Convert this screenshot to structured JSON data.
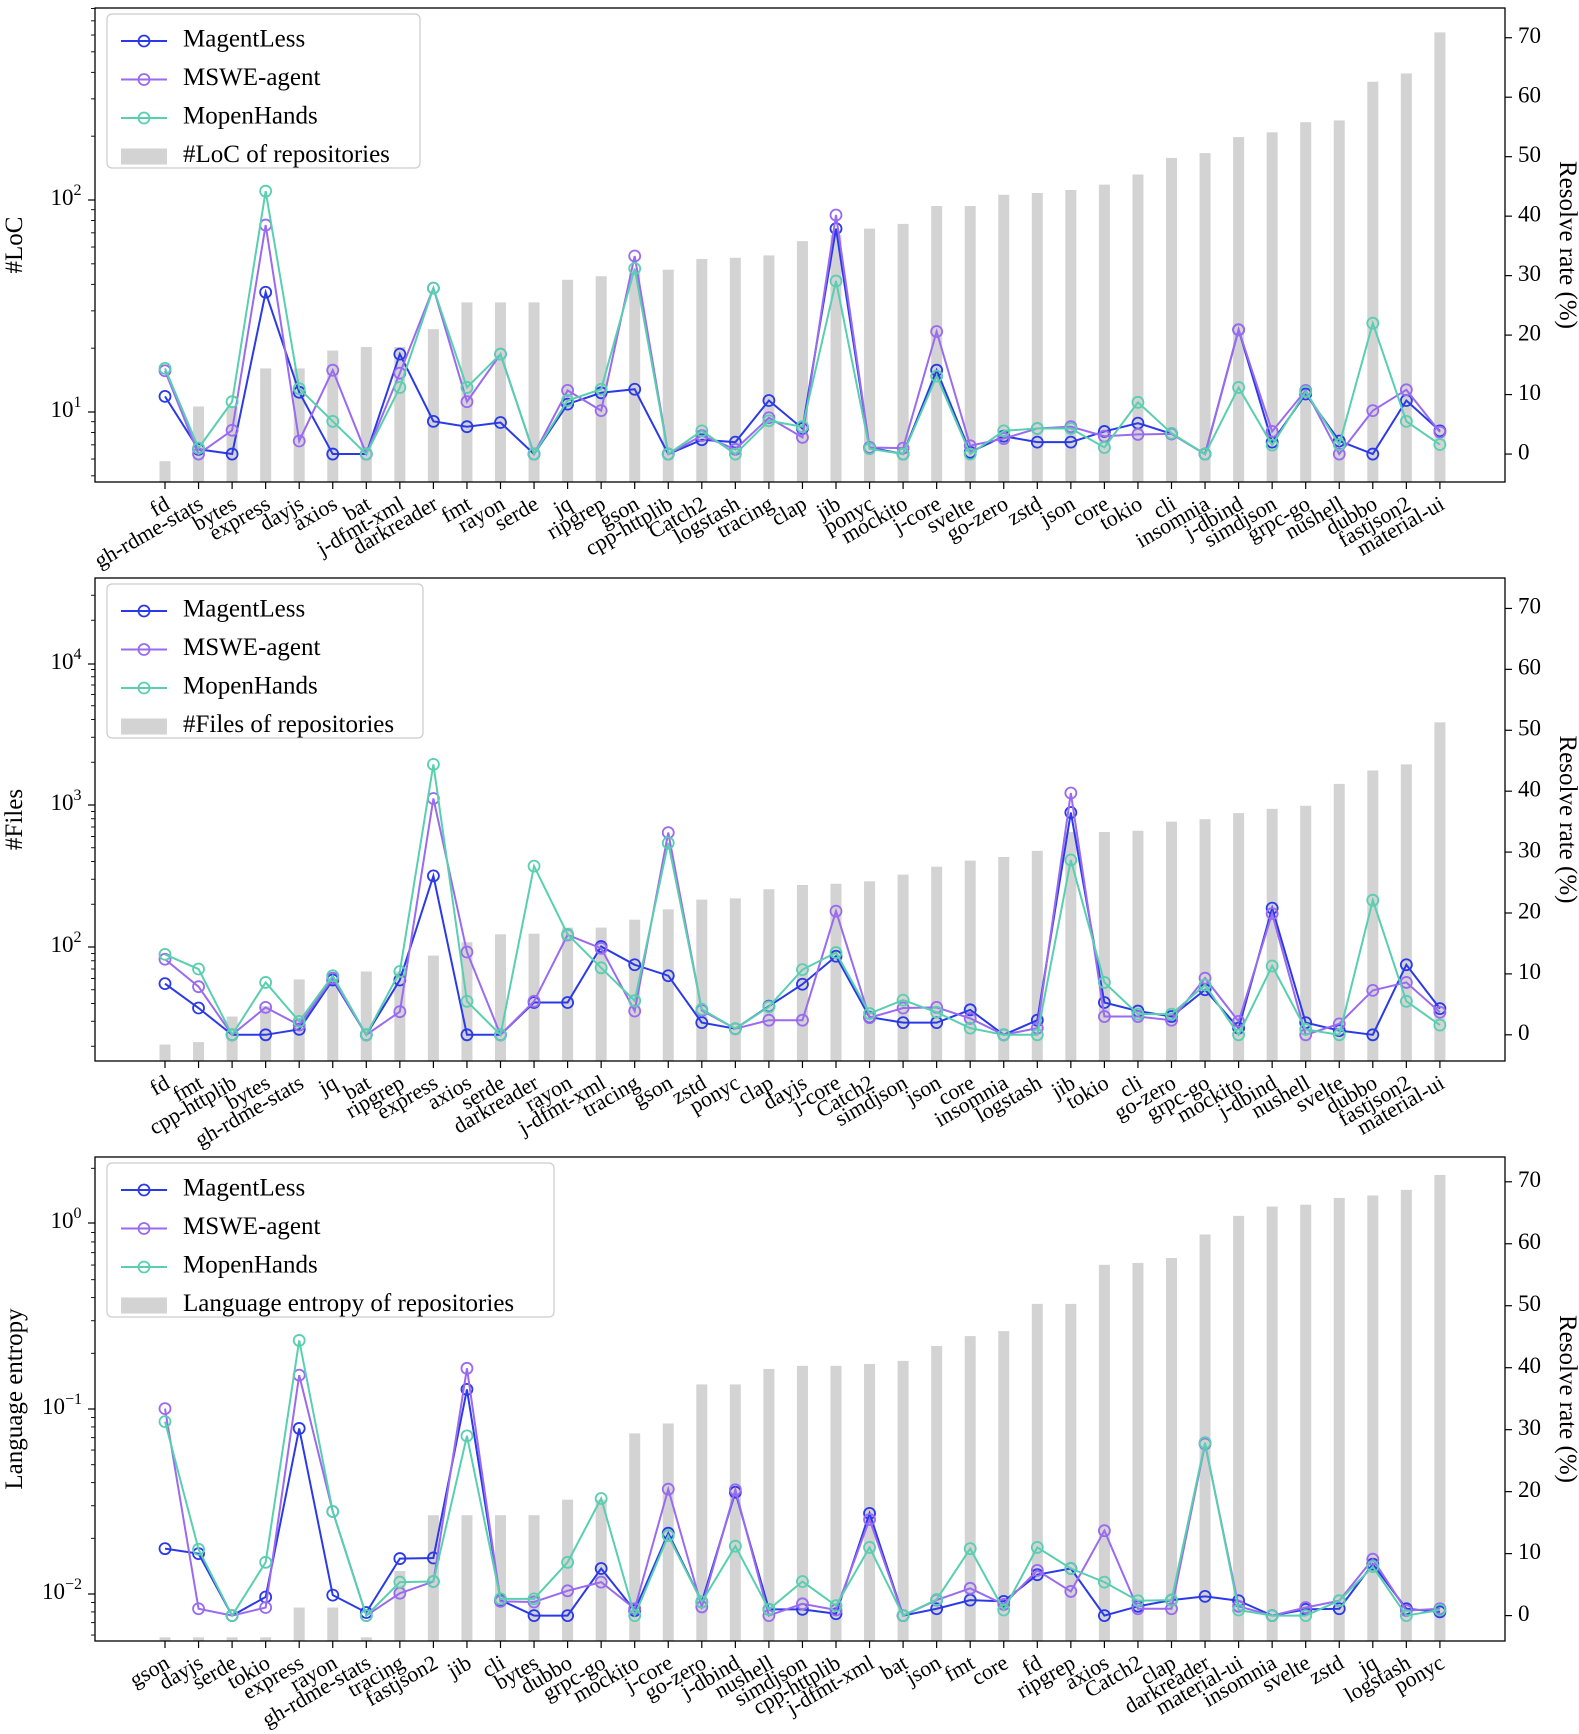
{
  "colors": {
    "magentless": "#2b3ae8",
    "msweagent": "#9a6af0",
    "mopenhands": "#59cfb0",
    "bar": "#d3d3d3"
  },
  "chart_data": [
    {
      "type": "bar+line",
      "y_left_label": "#LoC",
      "y_right_label": "Resolve rate (%)",
      "y_left_scale": "log",
      "y_left_ticks": [
        "10^1",
        "10^2"
      ],
      "y_right_ticks": [
        0,
        10,
        20,
        30,
        40,
        50,
        60,
        70
      ],
      "y_right_lim": [
        -4.7,
        75
      ],
      "legend": {
        "position": "top-left",
        "entries": [
          "MagentLess",
          "MSWE-agent",
          "MopenHands",
          "#LoC of repositories"
        ]
      },
      "categories": [
        "fd",
        "gh-rdme-stats",
        "bytes",
        "express",
        "dayjs",
        "axios",
        "bat",
        "j-dfmt-xml",
        "darkreader",
        "fmt",
        "rayon",
        "serde",
        "jq",
        "ripgrep",
        "gson",
        "cpp-httplib",
        "Catch2",
        "logstash",
        "tracing",
        "clap",
        "jib",
        "ponyc",
        "mockito",
        "j-core",
        "svelte",
        "go-zero",
        "zstd",
        "json",
        "core",
        "tokio",
        "cli",
        "insomnia",
        "j-dbind",
        "simdjson",
        "grpc-go",
        "nushell",
        "dubbo",
        "fastjson2",
        "material-ui"
      ],
      "bar_values": [
        -1.2,
        8.0,
        8.0,
        14.4,
        14.4,
        17.4,
        18.0,
        18.0,
        21.0,
        25.5,
        25.5,
        25.5,
        29.3,
        29.9,
        30.5,
        31.0,
        32.8,
        33.0,
        33.4,
        35.8,
        36.8,
        37.9,
        38.7,
        41.7,
        41.7,
        43.6,
        43.9,
        44.4,
        45.3,
        47.0,
        49.8,
        50.6,
        53.3,
        54.1,
        55.8,
        56.1,
        62.6,
        64.0,
        70.9
      ],
      "series": [
        {
          "name": "MagentLess",
          "values": [
            9.7,
            0.8,
            0.0,
            27.2,
            10.4,
            0.0,
            0.0,
            16.8,
            5.5,
            4.6,
            5.3,
            0.0,
            8.4,
            10.3,
            10.9,
            0.0,
            2.4,
            2.0,
            9.0,
            4.3,
            37.9,
            1.1,
            0.0,
            14.1,
            0.3,
            3.0,
            2.0,
            2.0,
            3.8,
            5.2,
            3.4,
            0.0,
            20.9,
            2.0,
            10.1,
            2.2,
            0.0,
            9.0,
            3.9
          ]
        },
        {
          "name": "MSWE-agent",
          "values": [
            14.0,
            0.0,
            4.0,
            38.5,
            2.2,
            14.1,
            0.0,
            13.6,
            27.9,
            8.8,
            16.8,
            0.0,
            10.7,
            7.3,
            33.3,
            0.0,
            3.1,
            0.8,
            6.1,
            2.8,
            40.2,
            1.1,
            1.0,
            20.6,
            1.4,
            2.6,
            4.3,
            4.6,
            3.0,
            3.3,
            3.4,
            0.0,
            20.9,
            3.8,
            10.7,
            0.0,
            7.3,
            10.8,
            3.7
          ]
        },
        {
          "name": "MopenHands",
          "values": [
            14.4,
            1.0,
            8.8,
            44.2,
            11.0,
            5.5,
            0.0,
            11.2,
            27.9,
            11.2,
            16.8,
            0.0,
            9.0,
            10.9,
            31.2,
            0.0,
            3.9,
            0.0,
            5.6,
            4.6,
            29.1,
            0.9,
            0.0,
            13.1,
            0.0,
            3.9,
            4.3,
            4.3,
            1.1,
            8.7,
            3.5,
            0.0,
            11.2,
            1.5,
            10.5,
            1.6,
            22.0,
            5.5,
            1.6
          ]
        }
      ]
    },
    {
      "type": "bar+line",
      "y_left_label": "#Files",
      "y_right_label": "Resolve rate (%)",
      "y_left_scale": "log",
      "y_left_ticks": [
        "10^2",
        "10^3",
        "10^4"
      ],
      "y_right_ticks": [
        0,
        10,
        20,
        30,
        40,
        50,
        60,
        70
      ],
      "y_right_lim": [
        -4.3,
        75
      ],
      "legend": {
        "position": "top-left",
        "entries": [
          "MagentLess",
          "MSWE-agent",
          "MopenHands",
          "#Files of repositories"
        ]
      },
      "categories": [
        "fd",
        "fmt",
        "cpp-httplib",
        "bytes",
        "gh-rdme-stats",
        "jq",
        "bat",
        "ripgrep",
        "express",
        "axios",
        "serde",
        "darkreader",
        "rayon",
        "j-dfmt-xml",
        "tracing",
        "gson",
        "zstd",
        "ponyc",
        "clap",
        "dayjs",
        "j-core",
        "Catch2",
        "simdjson",
        "json",
        "core",
        "insomnia",
        "logstash",
        "jib",
        "tokio",
        "cli",
        "go-zero",
        "grpc-go",
        "mockito",
        "j-dbind",
        "nushell",
        "svelte",
        "dubbo",
        "fastjson2",
        "material-ui"
      ],
      "bar_values": [
        -1.6,
        -1.2,
        3.0,
        4.7,
        9.1,
        9.1,
        10.4,
        10.4,
        13.0,
        15.2,
        16.5,
        16.6,
        17.6,
        17.6,
        18.9,
        20.6,
        22.2,
        22.4,
        23.9,
        24.6,
        24.8,
        25.2,
        26.3,
        27.6,
        28.6,
        29.2,
        30.2,
        33.3,
        33.3,
        33.5,
        35.0,
        35.4,
        36.4,
        37.1,
        37.6,
        41.2,
        43.4,
        44.4,
        51.3
      ],
      "series": [
        {
          "name": "MagentLess",
          "values": [
            8.4,
            4.4,
            0.0,
            0.0,
            0.9,
            9.0,
            0.0,
            9.0,
            26.1,
            0.0,
            0.0,
            5.3,
            5.3,
            14.5,
            11.5,
            9.7,
            2.0,
            1.0,
            4.7,
            8.3,
            12.9,
            2.9,
            2.0,
            2.0,
            4.1,
            0.0,
            2.4,
            36.5,
            5.3,
            3.9,
            3.0,
            7.4,
            1.1,
            20.8,
            2.0,
            0.7,
            0.0,
            11.5,
            4.3
          ]
        },
        {
          "name": "MSWE-agent",
          "values": [
            12.4,
            7.9,
            0.0,
            4.5,
            1.6,
            9.3,
            0.0,
            3.8,
            38.8,
            13.6,
            0.0,
            5.5,
            16.4,
            14.2,
            3.9,
            33.2,
            4.0,
            1.0,
            2.4,
            2.4,
            20.3,
            2.8,
            4.4,
            4.5,
            2.7,
            0.0,
            1.1,
            39.7,
            3.0,
            3.0,
            2.4,
            9.3,
            2.2,
            19.9,
            0.0,
            1.8,
            7.3,
            8.6,
            3.7
          ]
        },
        {
          "name": "MopenHands",
          "values": [
            13.2,
            10.8,
            0.0,
            8.6,
            2.2,
            9.7,
            0.0,
            10.4,
            44.4,
            5.5,
            0.0,
            27.7,
            16.5,
            11.0,
            5.6,
            31.5,
            4.2,
            1.0,
            4.6,
            10.7,
            13.5,
            3.5,
            5.7,
            3.7,
            1.1,
            0.0,
            0.0,
            28.7,
            8.6,
            3.4,
            3.4,
            8.2,
            0.0,
            11.3,
            0.9,
            0.0,
            22.1,
            5.5,
            1.6
          ]
        }
      ]
    },
    {
      "type": "bar+line",
      "y_left_label": "Language entropy",
      "y_right_label": "Resolve rate (%)",
      "y_left_scale": "log",
      "y_left_ticks": [
        "10^-2",
        "10^-1",
        "10^0"
      ],
      "y_right_ticks": [
        0,
        10,
        20,
        30,
        40,
        50,
        60,
        70
      ],
      "y_right_lim": [
        -4.1,
        74
      ],
      "legend": {
        "position": "top-left",
        "entries": [
          "MagentLess",
          "MSWE-agent",
          "MopenHands",
          "Language entropy of repositories"
        ]
      },
      "categories": [
        "gson",
        "dayjs",
        "serde",
        "tokio",
        "express",
        "rayon",
        "gh-rdme-stats",
        "tracing",
        "fastjson2",
        "jib",
        "cli",
        "bytes",
        "dubbo",
        "grpc-go",
        "mockito",
        "j-core",
        "go-zero",
        "j-dbind",
        "nushell",
        "simdjson",
        "cpp-httplib",
        "j-dfmt-xml",
        "bat",
        "json",
        "fmt",
        "core",
        "fd",
        "ripgrep",
        "axios",
        "Catch2",
        "clap",
        "darkreader",
        "material-ui",
        "insomnia",
        "svelte",
        "zstd",
        "jq",
        "logstash",
        "ponyc"
      ],
      "bar_values": [
        -3.5,
        -3.5,
        -3.5,
        -3.5,
        1.3,
        1.3,
        -3.5,
        7.2,
        16.2,
        16.2,
        16.2,
        16.2,
        18.7,
        18.7,
        29.4,
        31.0,
        37.3,
        37.3,
        39.8,
        40.3,
        40.3,
        40.6,
        41.1,
        43.5,
        45.1,
        45.9,
        50.3,
        50.3,
        56.6,
        56.9,
        57.7,
        61.5,
        64.5,
        66.0,
        66.3,
        67.4,
        67.8,
        68.7,
        71.1
      ],
      "series": [
        {
          "name": "MagentLess",
          "values": [
            10.8,
            10.0,
            0.0,
            3.0,
            30.2,
            3.3,
            0.5,
            9.2,
            9.3,
            36.5,
            2.5,
            0.0,
            0.0,
            7.6,
            0.8,
            13.3,
            2.2,
            19.9,
            1.0,
            1.0,
            0.3,
            16.5,
            0.0,
            1.1,
            2.5,
            2.3,
            6.6,
            7.6,
            0.0,
            1.5,
            2.5,
            3.1,
            2.4,
            0.0,
            1.0,
            1.1,
            8.3,
            1.1,
            0.6
          ]
        },
        {
          "name": "MSWE-agent",
          "values": [
            33.4,
            1.1,
            0.0,
            1.3,
            38.8,
            16.8,
            0.0,
            3.6,
            5.5,
            39.9,
            2.3,
            2.2,
            4.0,
            5.4,
            1.1,
            20.4,
            1.4,
            20.3,
            0.0,
            1.9,
            0.9,
            15.5,
            0.0,
            2.5,
            4.4,
            1.8,
            7.3,
            3.9,
            13.7,
            1.1,
            1.1,
            27.7,
            1.5,
            0.0,
            1.3,
            2.4,
            9.1,
            0.8,
            1.1
          ]
        },
        {
          "name": "MopenHands",
          "values": [
            31.3,
            10.7,
            0.0,
            8.6,
            44.4,
            16.8,
            0.0,
            5.4,
            5.5,
            29.0,
            2.7,
            2.7,
            8.6,
            18.9,
            0.0,
            12.9,
            2.2,
            11.2,
            1.0,
            5.5,
            1.6,
            11.0,
            0.0,
            2.6,
            10.8,
            0.9,
            11.0,
            7.6,
            5.4,
            2.4,
            2.5,
            27.9,
            0.9,
            0.0,
            0.0,
            2.4,
            7.9,
            0.0,
            0.9
          ]
        }
      ]
    }
  ]
}
